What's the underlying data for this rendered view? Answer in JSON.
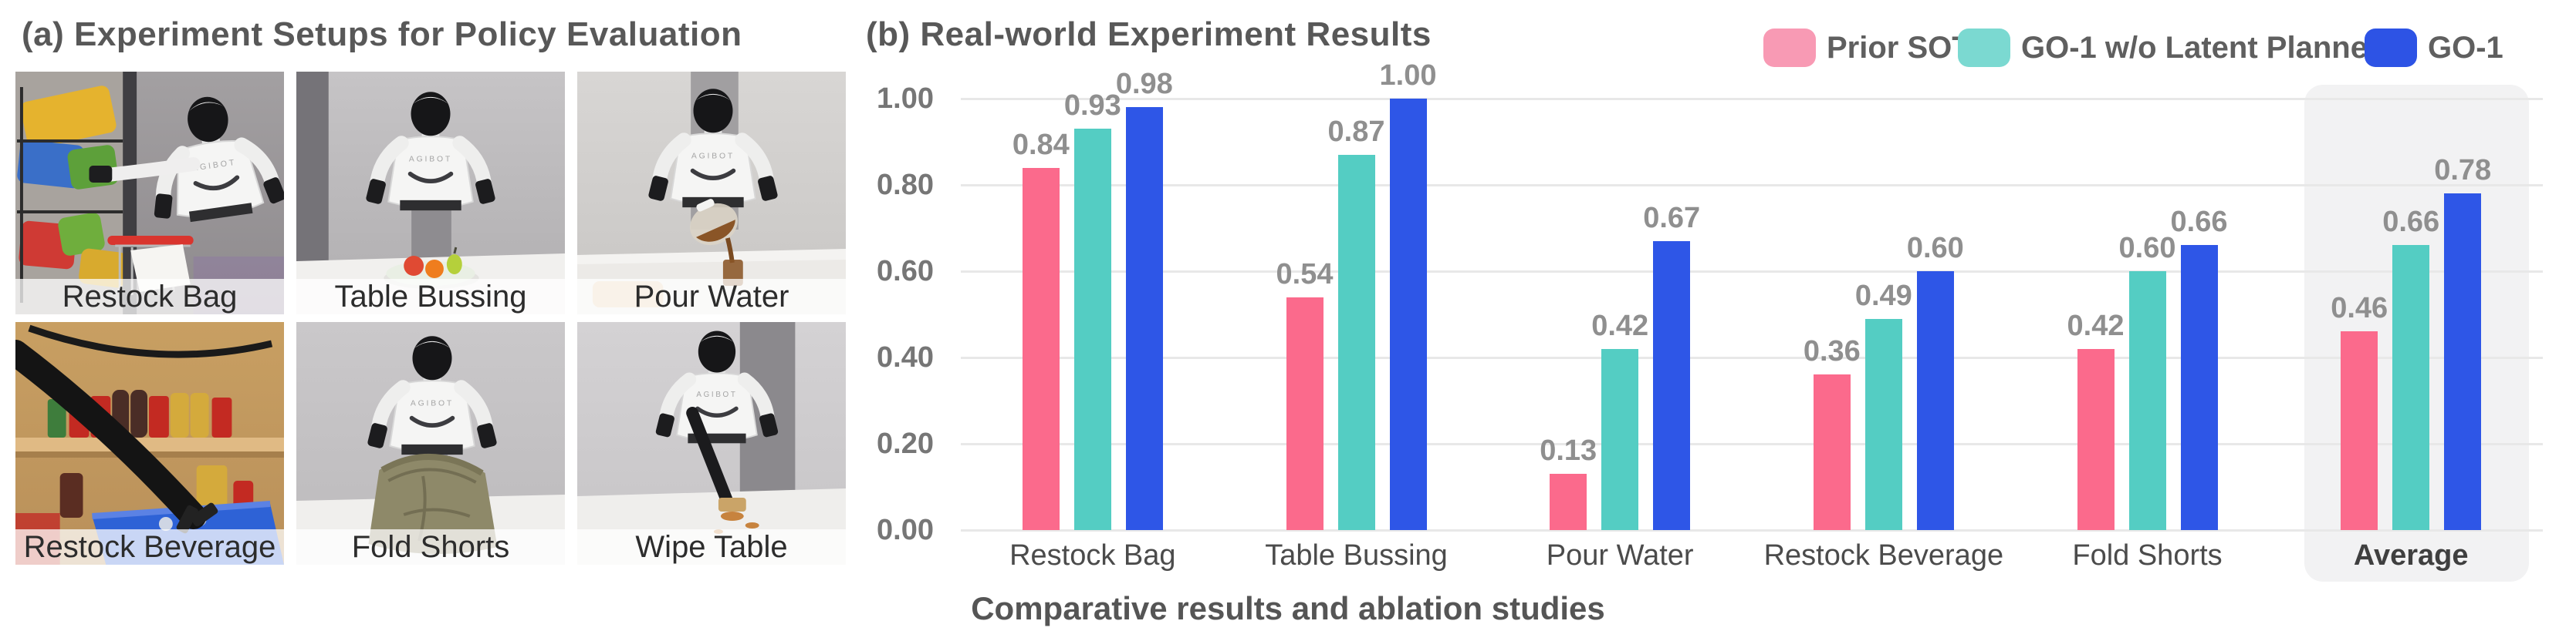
{
  "panel_a": {
    "title": "(a) Experiment Setups for Policy Evaluation",
    "photos": [
      {
        "label": "Restock Bag"
      },
      {
        "label": "Table Bussing"
      },
      {
        "label": "Pour Water"
      },
      {
        "label": "Restock Beverage"
      },
      {
        "label": "Fold Shorts"
      },
      {
        "label": "Wipe Table"
      }
    ]
  },
  "panel_b": {
    "title": "(b) Real-world Experiment Results",
    "caption": "Comparative results and ablation studies",
    "legend": [
      {
        "label": "Prior SOTA",
        "swatch_color": "#F89AB4",
        "swatch_style": "background:#F89AB4"
      },
      {
        "label": "GO-1 w/o Latent Planner",
        "swatch_color": "#7BD9D1",
        "swatch_style": "background:#7BD9D1"
      },
      {
        "label": "GO-1",
        "swatch_color": "#2D53E5",
        "swatch_style": "background:#2D53E5"
      }
    ]
  },
  "chart_data": {
    "type": "bar",
    "title": "(b) Real-world Experiment Results",
    "categories": [
      "Restock Bag",
      "Table Bussing",
      "Pour Water",
      "Restock Beverage",
      "Fold Shorts",
      "Average"
    ],
    "series": [
      {
        "name": "Prior SOTA",
        "color": "#FB6A8C",
        "values": [
          0.84,
          0.54,
          0.13,
          0.36,
          0.42,
          0.46
        ]
      },
      {
        "name": "GO-1 w/o Latent Planner",
        "color": "#54CDC3",
        "values": [
          0.93,
          0.87,
          0.42,
          0.49,
          0.6,
          0.66
        ]
      },
      {
        "name": "GO-1",
        "color": "#2E56E7",
        "values": [
          0.98,
          1.0,
          0.67,
          0.6,
          0.66,
          0.78
        ]
      }
    ],
    "y_ticks": [
      "0.00",
      "0.20",
      "0.40",
      "0.60",
      "0.80",
      "1.00"
    ],
    "ylim": [
      0,
      1.0
    ],
    "grid": true,
    "grid_color": "#e8e8e8",
    "legend_position": "top-right",
    "highlight_category": "Average",
    "highlight_color": "#f2f2f3",
    "value_labels": true,
    "xlabel": "",
    "ylabel": ""
  }
}
